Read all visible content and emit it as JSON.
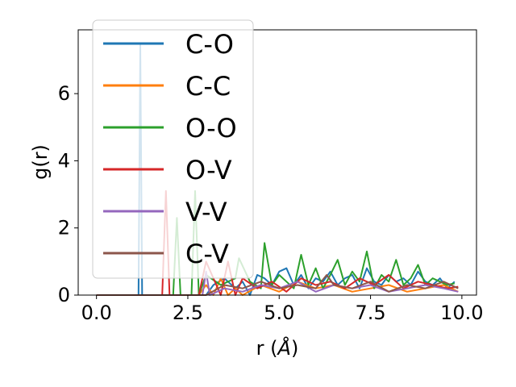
{
  "chart_data": {
    "type": "line",
    "xlabel": "r (",
    "xlabel_unit": "Å",
    "xlabel_close": ")",
    "ylabel": "g(r)",
    "xlim": [
      -0.5,
      10.4
    ],
    "ylim": [
      0,
      7.9
    ],
    "xticks": [
      0.0,
      2.5,
      5.0,
      7.5,
      10.0
    ],
    "xtick_labels": [
      "0.0",
      "2.5",
      "5.0",
      "7.5",
      "10.0"
    ],
    "yticks": [
      0,
      2,
      4,
      6
    ],
    "ytick_labels": [
      "0",
      "2",
      "4",
      "6"
    ],
    "grid": false,
    "legend_position": "upper-left",
    "series": [
      {
        "name": "C-O",
        "color": "#1f77b4",
        "x": [
          0.0,
          1.1,
          1.15,
          1.2,
          1.25,
          1.3,
          1.35,
          3.0,
          3.2,
          3.5,
          3.8,
          4.0,
          4.2,
          4.4,
          4.6,
          4.8,
          5.0,
          5.2,
          5.4,
          5.6,
          5.8,
          6.0,
          6.2,
          6.4,
          6.6,
          6.8,
          7.0,
          7.2,
          7.4,
          7.6,
          7.8,
          8.0,
          8.2,
          8.4,
          8.6,
          8.8,
          9.0,
          9.2,
          9.4,
          9.6,
          9.8
        ],
        "y": [
          0.0,
          0.0,
          0.0,
          7.5,
          0.0,
          0.0,
          0.0,
          0.0,
          0.3,
          0.5,
          0.2,
          0.4,
          0.0,
          0.6,
          0.5,
          0.3,
          0.7,
          0.8,
          0.3,
          0.6,
          0.2,
          0.5,
          0.4,
          0.7,
          0.3,
          0.5,
          0.6,
          0.2,
          0.8,
          0.4,
          0.3,
          0.6,
          0.4,
          0.5,
          0.3,
          0.7,
          0.4,
          0.3,
          0.5,
          0.2,
          0.4
        ]
      },
      {
        "name": "C-C",
        "color": "#ff7f0e",
        "x": [
          0.0,
          2.8,
          3.0,
          3.2,
          3.4,
          3.6,
          3.8,
          4.0,
          4.5,
          5.0,
          5.5,
          6.0,
          6.5,
          7.0,
          7.5,
          8.0,
          8.5,
          9.0,
          9.5,
          9.9
        ],
        "y": [
          0.0,
          0.0,
          0.3,
          0.0,
          0.5,
          0.0,
          0.2,
          0.0,
          0.3,
          0.1,
          0.4,
          0.2,
          0.3,
          0.1,
          0.2,
          0.3,
          0.1,
          0.2,
          0.3,
          0.1
        ]
      },
      {
        "name": "O-O",
        "color": "#2ca02c",
        "x": [
          0.0,
          2.1,
          2.2,
          2.3,
          2.6,
          2.7,
          2.8,
          3.0,
          3.4,
          3.8,
          3.9,
          4.2,
          4.5,
          4.6,
          4.8,
          5.0,
          5.2,
          5.4,
          5.6,
          5.8,
          6.0,
          6.2,
          6.4,
          6.6,
          6.8,
          7.0,
          7.2,
          7.4,
          7.6,
          7.8,
          8.0,
          8.2,
          8.4,
          8.6,
          8.8,
          9.0,
          9.2,
          9.4,
          9.6,
          9.8
        ],
        "y": [
          0.0,
          0.0,
          2.3,
          0.0,
          0.0,
          3.1,
          0.0,
          0.6,
          0.3,
          0.5,
          1.1,
          0.4,
          0.2,
          1.55,
          0.3,
          0.6,
          0.4,
          0.2,
          1.2,
          0.3,
          0.8,
          0.2,
          0.6,
          1.05,
          0.3,
          0.7,
          0.4,
          1.3,
          0.2,
          0.6,
          0.4,
          1.05,
          0.3,
          0.5,
          0.9,
          0.3,
          0.5,
          0.4,
          0.3,
          0.35
        ]
      },
      {
        "name": "O-V",
        "color": "#d62728",
        "x": [
          0.0,
          1.8,
          1.9,
          2.0,
          2.2,
          2.4,
          2.6,
          2.8,
          3.0,
          3.4,
          3.6,
          3.8,
          4.0,
          4.4,
          4.8,
          5.2,
          5.6,
          6.0,
          6.4,
          6.8,
          7.2,
          7.6,
          8.0,
          8.4,
          8.8,
          9.2,
          9.6,
          9.9
        ],
        "y": [
          0.0,
          0.0,
          3.1,
          0.0,
          0.0,
          0.0,
          0.0,
          0.0,
          1.0,
          0.0,
          1.0,
          0.0,
          0.5,
          0.2,
          0.4,
          0.1,
          0.5,
          0.3,
          0.4,
          0.2,
          0.5,
          0.3,
          0.6,
          0.2,
          0.4,
          0.3,
          0.2,
          0.25
        ]
      },
      {
        "name": "V-V",
        "color": "#9467bd",
        "x": [
          0.0,
          2.9,
          3.0,
          3.1,
          3.5,
          4.0,
          4.5,
          5.0,
          5.5,
          6.0,
          6.5,
          7.0,
          7.5,
          8.0,
          8.5,
          9.0,
          9.5,
          9.9
        ],
        "y": [
          0.0,
          0.0,
          0.7,
          0.0,
          0.2,
          0.1,
          0.3,
          0.2,
          0.4,
          0.1,
          0.3,
          0.2,
          0.3,
          0.1,
          0.2,
          0.3,
          0.2,
          0.1
        ]
      },
      {
        "name": "C-V",
        "color": "#8c564b",
        "x": [
          0.0,
          3.0,
          3.5,
          4.0,
          4.5,
          5.0,
          5.5,
          6.0,
          6.3,
          6.5,
          7.0,
          7.5,
          8.0,
          8.5,
          9.0,
          9.5,
          9.9
        ],
        "y": [
          0.0,
          0.0,
          0.3,
          0.2,
          0.4,
          0.2,
          0.3,
          0.2,
          0.6,
          0.3,
          0.2,
          0.4,
          0.1,
          0.3,
          0.2,
          0.4,
          0.2
        ]
      }
    ]
  }
}
